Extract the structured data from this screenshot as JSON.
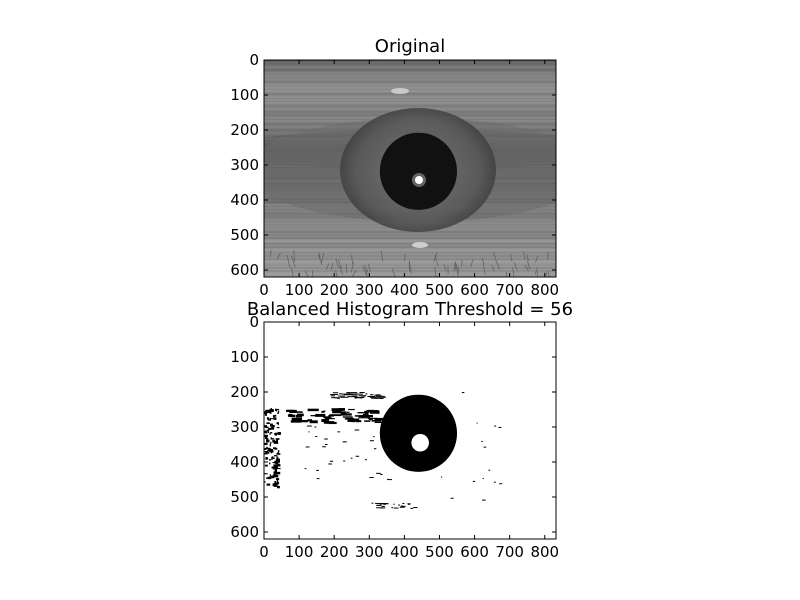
{
  "chart_data": [
    {
      "type": "image",
      "title": "Original",
      "xlim": [
        0,
        832
      ],
      "ylim": [
        620,
        0
      ],
      "xticks": [
        "0",
        "100",
        "200",
        "300",
        "400",
        "500",
        "600",
        "700",
        "800"
      ],
      "yticks": [
        "0",
        "100",
        "200",
        "300",
        "400",
        "500",
        "600"
      ],
      "xtick_values": [
        0,
        100,
        200,
        300,
        400,
        500,
        600,
        700,
        800
      ],
      "ytick_values": [
        0,
        100,
        200,
        300,
        400,
        500,
        600
      ],
      "grid": false,
      "colormap": "gray",
      "content": "grayscale eye image",
      "pupil": {
        "cx": 440,
        "cy": 318,
        "r": 110
      }
    },
    {
      "type": "image",
      "title": "Balanced Histogram Threshold = 56",
      "xlim": [
        0,
        832
      ],
      "ylim": [
        620,
        0
      ],
      "xticks": [
        "0",
        "100",
        "200",
        "300",
        "400",
        "500",
        "600",
        "700",
        "800"
      ],
      "yticks": [
        "0",
        "100",
        "200",
        "300",
        "400",
        "500",
        "600"
      ],
      "xtick_values": [
        0,
        100,
        200,
        300,
        400,
        500,
        600,
        700,
        800
      ],
      "ytick_values": [
        0,
        100,
        200,
        300,
        400,
        500,
        600
      ],
      "grid": false,
      "colormap": "binary",
      "threshold": 56,
      "content": "binary thresholded eye image",
      "pupil": {
        "cx": 440,
        "cy": 318,
        "r": 110
      },
      "glint": {
        "cx": 445,
        "cy": 345,
        "r": 25
      }
    }
  ]
}
